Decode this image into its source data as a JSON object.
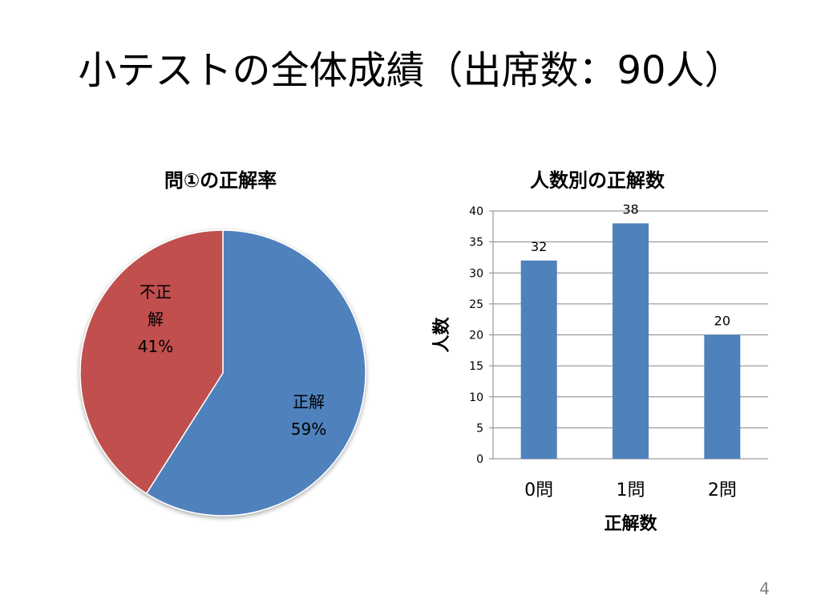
{
  "slide": {
    "title": "小テストの全体成績（出席数：90人）",
    "page_number": "4"
  },
  "chart_data": [
    {
      "type": "pie",
      "title": "問①の正解率",
      "slices": [
        {
          "label": "正解",
          "value": 59,
          "display": "59%",
          "color": "#4f81bd"
        },
        {
          "label": "不正解",
          "value": 41,
          "display": "41%",
          "color": "#c0504d"
        }
      ]
    },
    {
      "type": "bar",
      "title": "人数別の正解数",
      "categories": [
        "0問",
        "1問",
        "2問"
      ],
      "values": [
        32,
        38,
        20
      ],
      "xlabel": "正解数",
      "ylabel": "人数",
      "ylim": [
        0,
        40
      ],
      "yticks": [
        0,
        5,
        10,
        15,
        20,
        25,
        30,
        35,
        40
      ],
      "color": "#4f81bd",
      "grid": true
    }
  ]
}
